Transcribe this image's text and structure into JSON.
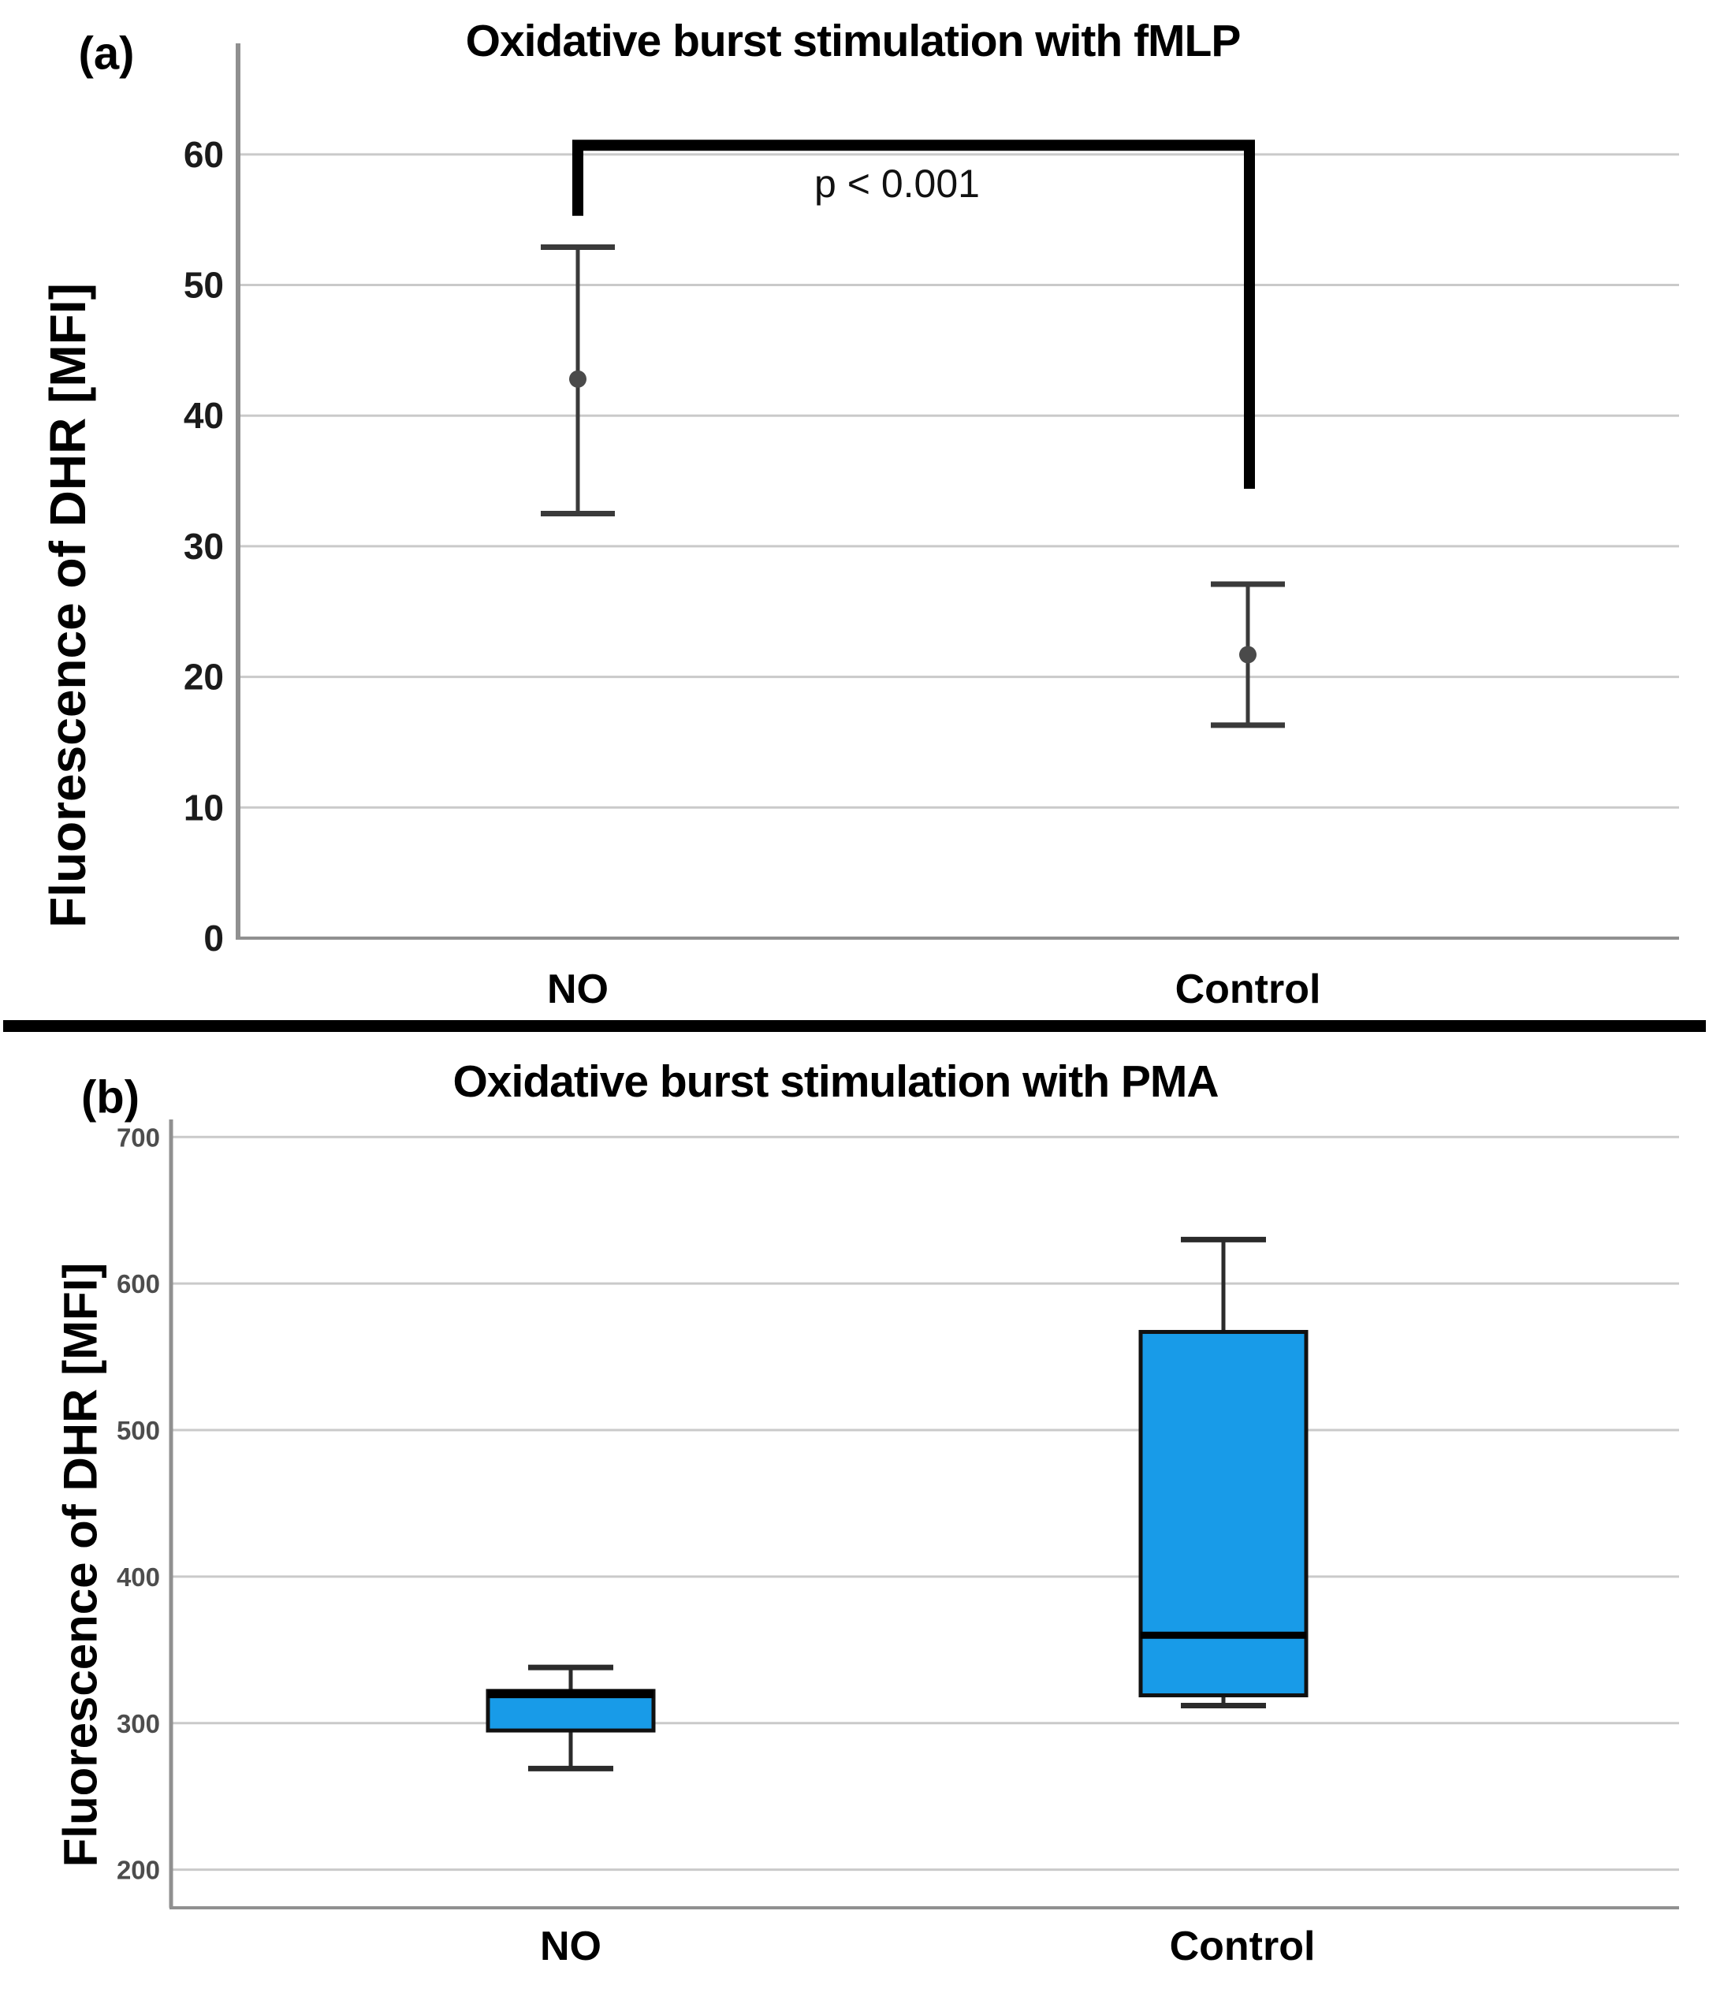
{
  "colors": {
    "box_fill": "#189BE8",
    "grid": "#cacaca",
    "axis": "#909090",
    "errorbar": "#3a3a3a",
    "mean_dot": "#4a4a4a",
    "bracket": "#000000",
    "box_border": "#111111",
    "median": "#000000",
    "divider": "#000000"
  },
  "chart_data": [
    {
      "type": "scatter",
      "subtype": "mean-with-error-bars",
      "panel_label": "(a)",
      "title": "Oxidative burst stimulation with fMLP",
      "ylabel": "Fluorescence of DHR [MFI]",
      "xlabel": "",
      "categories": [
        "NO",
        "Control"
      ],
      "series": [
        {
          "name": "NO",
          "mean": 42.8,
          "ci_low": 32.5,
          "ci_high": 52.9
        },
        {
          "name": "Control",
          "mean": 21.7,
          "ci_low": 16.3,
          "ci_high": 27.1
        }
      ],
      "ylim": [
        0,
        68.5
      ],
      "yticks": [
        0,
        10,
        20,
        30,
        40,
        50,
        60
      ],
      "grid": true,
      "legend": "none",
      "annotation": {
        "text": "p < 0.001",
        "bracket_top_value": 60.7,
        "left_leg_bottom_value": 55.3,
        "right_leg_bottom_value": 34.4
      }
    },
    {
      "type": "box",
      "panel_label": "(b)",
      "title": "Oxidative burst stimulation with PMA",
      "ylabel": "Fluorescence of DHR [MFI]",
      "xlabel": "",
      "categories": [
        "NO",
        "Control"
      ],
      "series": [
        {
          "name": "NO",
          "whisker_low": 269,
          "q1": 295,
          "median": 320,
          "q3": 322,
          "whisker_high": 338
        },
        {
          "name": "Control",
          "whisker_low": 312,
          "q1": 319,
          "median": 360,
          "q3": 567,
          "whisker_high": 630
        }
      ],
      "ylim": [
        174,
        712
      ],
      "yticks": [
        200,
        300,
        400,
        500,
        600,
        700
      ],
      "grid": true,
      "legend": "none"
    }
  ]
}
